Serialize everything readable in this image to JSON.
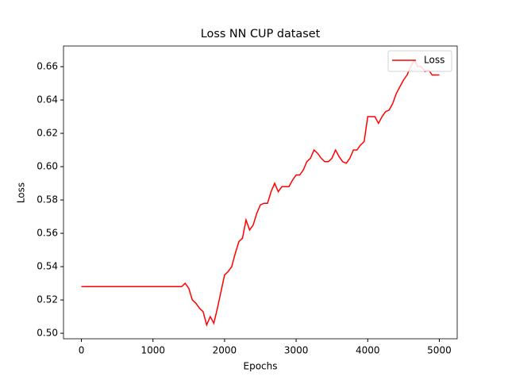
{
  "chart_data": {
    "type": "line",
    "title": "Loss NN CUP dataset",
    "x_label": "Epochs",
    "y_label": "Loss",
    "x": [
      0,
      1400,
      1450,
      1500,
      1550,
      1600,
      1650,
      1700,
      1750,
      1800,
      1850,
      1900,
      1950,
      2000,
      2050,
      2100,
      2150,
      2200,
      2250,
      2300,
      2350,
      2400,
      2450,
      2500,
      2550,
      2600,
      2650,
      2700,
      2750,
      2800,
      2850,
      2900,
      2950,
      3000,
      3050,
      3100,
      3150,
      3200,
      3250,
      3300,
      3350,
      3400,
      3450,
      3500,
      3550,
      3600,
      3650,
      3700,
      3750,
      3800,
      3850,
      3900,
      3950,
      4000,
      4050,
      4100,
      4150,
      4200,
      4250,
      4300,
      4350,
      4400,
      4450,
      4500,
      4550,
      4600,
      4650,
      4700,
      4750,
      4800,
      4850,
      4900,
      4950,
      5000
    ],
    "series": [
      {
        "name": "Loss",
        "color": "#ff0000",
        "values": [
          0.528,
          0.528,
          0.53,
          0.527,
          0.52,
          0.518,
          0.515,
          0.513,
          0.505,
          0.51,
          0.506,
          0.515,
          0.525,
          0.535,
          0.537,
          0.54,
          0.548,
          0.555,
          0.557,
          0.568,
          0.562,
          0.565,
          0.572,
          0.577,
          0.578,
          0.578,
          0.585,
          0.59,
          0.585,
          0.588,
          0.588,
          0.588,
          0.592,
          0.595,
          0.595,
          0.598,
          0.603,
          0.605,
          0.61,
          0.608,
          0.605,
          0.603,
          0.603,
          0.605,
          0.61,
          0.606,
          0.603,
          0.602,
          0.605,
          0.61,
          0.61,
          0.613,
          0.615,
          0.63,
          0.63,
          0.63,
          0.626,
          0.63,
          0.633,
          0.634,
          0.638,
          0.644,
          0.648,
          0.652,
          0.655,
          0.66,
          0.664,
          0.66,
          0.66,
          0.657,
          0.658,
          0.655,
          0.655,
          0.655
        ]
      }
    ],
    "xlim": [
      -250,
      5250
    ],
    "ylim": [
      0.4967,
      0.6724
    ],
    "xticks": [
      0,
      1000,
      2000,
      3000,
      4000,
      5000
    ],
    "yticks": [
      {
        "value": 0.5,
        "label": "0.50"
      },
      {
        "value": 0.52,
        "label": "0.52"
      },
      {
        "value": 0.54,
        "label": "0.54"
      },
      {
        "value": 0.56,
        "label": "0.56"
      },
      {
        "value": 0.58,
        "label": "0.58"
      },
      {
        "value": 0.6,
        "label": "0.60"
      },
      {
        "value": 0.62,
        "label": "0.62"
      },
      {
        "value": 0.64,
        "label": "0.64"
      },
      {
        "value": 0.66,
        "label": "0.66"
      }
    ],
    "legend": "upper right"
  }
}
